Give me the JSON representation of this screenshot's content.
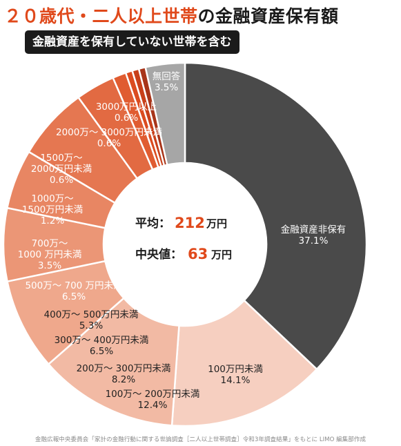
{
  "header": {
    "title_highlight": "２０歳代・二人以上世帯",
    "title_rest": "の金融資産保有額",
    "subtitle": "金融資産を保有していない世帯を含む"
  },
  "center": {
    "avg_label": "平均：",
    "avg_value": "212",
    "avg_unit": "万円",
    "median_label": "中央値：",
    "median_value": "63",
    "median_unit": "万円"
  },
  "footer": {
    "source": "金融広報中央委員会「家計の金融行動に関する世論調査［二人以上世帯調査］令和3年調査結果」をもとに LIMO 編集部作成"
  },
  "chart_data": {
    "type": "pie",
    "series": [
      {
        "label": "金融資産非保有",
        "value": 37.1,
        "display": "37.1%",
        "color": "#4a4a4a"
      },
      {
        "label": "100万円未満",
        "value": 14.1,
        "display": "14.1%",
        "color": "#F6CFC0"
      },
      {
        "label": "100万～ 200万円未満",
        "value": 12.4,
        "display": "12.4%",
        "color": "#F2BAA4"
      },
      {
        "label": "200万～ 300万円未満",
        "value": 8.2,
        "display": "8.2%",
        "color": "#EFA88C"
      },
      {
        "label": "300万～ 400万円未満",
        "value": 6.5,
        "display": "6.5%",
        "color": "#EB9676"
      },
      {
        "label": "400万～ 500万円未満",
        "value": 5.3,
        "display": "5.3%",
        "color": "#E88663"
      },
      {
        "label": "500万～ 700 万円未満",
        "value": 6.5,
        "display": "6.5%",
        "color": "#E57751"
      },
      {
        "label": "700万～ 1000 万円未満",
        "value": 3.5,
        "display": "3.5%",
        "color": "#E26A42"
      },
      {
        "label": "1000万～ 1500万円未満",
        "value": 1.2,
        "display": "1.2%",
        "color": "#E05C31"
      },
      {
        "label": "1500万～ 2000万円未満",
        "value": 0.6,
        "display": "0.6%",
        "color": "#DB4C20"
      },
      {
        "label": "2000万～ 3000万円未満",
        "value": 0.6,
        "display": "0.6%",
        "color": "#C8401A"
      },
      {
        "label": "3000万円以上",
        "value": 0.6,
        "display": "0.6%",
        "color": "#A8351A"
      },
      {
        "label": "無回答",
        "value": 3.5,
        "display": "3.5%",
        "color": "#A6A6A6"
      }
    ]
  }
}
